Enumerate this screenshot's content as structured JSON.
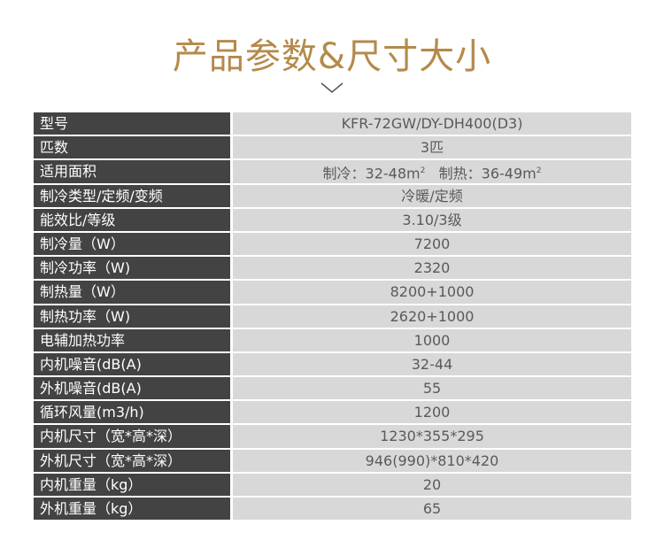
{
  "page": {
    "title": "产品参数&尺寸大小",
    "accent_color": "#b48a4a"
  },
  "specs": [
    {
      "label": "型号",
      "value": "KFR-72GW/DY-DH400(D3)"
    },
    {
      "label": "匹数",
      "value": "3匹"
    },
    {
      "label": "适用面积",
      "value_parts": {
        "cool_label": "制冷：",
        "cool_value": "32-48m",
        "heat_label": "制热：",
        "heat_value": "36-49m",
        "unit_sup": "2"
      }
    },
    {
      "label": "制冷类型/定频/变频",
      "value": "冷暖/定频"
    },
    {
      "label": "能效比/等级",
      "value": "3.10/3级"
    },
    {
      "label": "制冷量（W）",
      "value": "7200"
    },
    {
      "label": "制冷功率（W)",
      "value": "2320"
    },
    {
      "label": "制热量（W）",
      "value": "8200+1000"
    },
    {
      "label": "制热功率（W)",
      "value": "2620+1000"
    },
    {
      "label": "电辅加热功率",
      "value": "1000"
    },
    {
      "label": "内机噪音(dB(A)",
      "value": "32-44"
    },
    {
      "label": "外机噪音(dB(A)",
      "value": "55"
    },
    {
      "label": "循环风量(m3/h)",
      "value": "1200"
    },
    {
      "label": "内机尺寸（宽*高*深）",
      "value": "1230*355*295"
    },
    {
      "label": "外机尺寸（宽*高*深）",
      "value": "946(990)*810*420"
    },
    {
      "label": "内机重量（kg）",
      "value": "20"
    },
    {
      "label": "外机重量（kg）",
      "value": "65"
    }
  ]
}
